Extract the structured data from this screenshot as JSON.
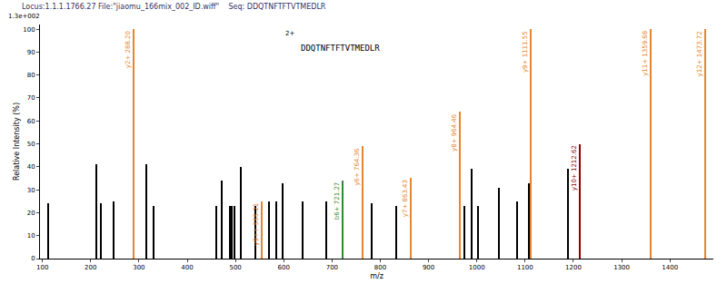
{
  "chart_data": {
    "type": "bar",
    "title": "Locus:1.1.1.1766.27 File:\"jiaomu_166mix_002_ID.wiff\"    Seq: DDQTNFTFTVTMEDLR",
    "scale_label": "1.3e+002",
    "annotations": [
      "2+",
      "DDQTNFTFTVTMEDLR"
    ],
    "x_label": "m/z",
    "y_label": "Relative Intensity (%)",
    "x": [
      112,
      212,
      222,
      247,
      288.2,
      315,
      330,
      460,
      471,
      488,
      493,
      498,
      512,
      542,
      555.21,
      570,
      585,
      598,
      640,
      688,
      721.27,
      764.36,
      782,
      833,
      863.43,
      964.46,
      975,
      990,
      1003,
      1045,
      1083,
      1108,
      1111.55,
      1188,
      1212.62,
      1359.68,
      1473.72
    ],
    "values": [
      24,
      41,
      24,
      25,
      100,
      41,
      23,
      23,
      34,
      23,
      23,
      23,
      40,
      23,
      25,
      25,
      25,
      33,
      25,
      25,
      34,
      49,
      24,
      23,
      35,
      64,
      23,
      39,
      23,
      31,
      25,
      33,
      100,
      39,
      50,
      100,
      100
    ],
    "colors": [
      "#000000",
      "#000000",
      "#000000",
      "#000000",
      "#e8842c",
      "#000000",
      "#000000",
      "#000000",
      "#000000",
      "#000000",
      "#000000",
      "#000000",
      "#000000",
      "#000000",
      "#e8842c",
      "#000000",
      "#000000",
      "#000000",
      "#000000",
      "#000000",
      "#2e8b2e",
      "#e8842c",
      "#000000",
      "#000000",
      "#e8842c",
      "#e8842c",
      "#000000",
      "#000000",
      "#000000",
      "#000000",
      "#000000",
      "#000000",
      "#e8842c",
      "#000000",
      "#8b0000",
      "#e8842c",
      "#e8842c"
    ],
    "labels": [
      null,
      null,
      null,
      null,
      "y2+ 288.20",
      null,
      null,
      null,
      null,
      null,
      null,
      null,
      null,
      null,
      "y9++ 555.21",
      null,
      null,
      null,
      null,
      null,
      "b6+ 721.27",
      "y6+ 764.36",
      null,
      null,
      "y7+ 863.43",
      "y8+ 964.46",
      null,
      null,
      null,
      null,
      null,
      null,
      "y9+ 1111.55",
      null,
      "y10+ 1212.62",
      "y11+ 1359.68",
      "y12+ 1473.72"
    ],
    "xlim": [
      95,
      1490
    ],
    "xticks": [
      100,
      200,
      300,
      400,
      500,
      600,
      700,
      800,
      900,
      1000,
      1100,
      1200,
      1300,
      1400
    ],
    "ylim": [
      0,
      102
    ],
    "yticks": [
      0,
      10,
      20,
      30,
      40,
      50,
      60,
      70,
      80,
      90,
      100
    ],
    "grid": false
  }
}
